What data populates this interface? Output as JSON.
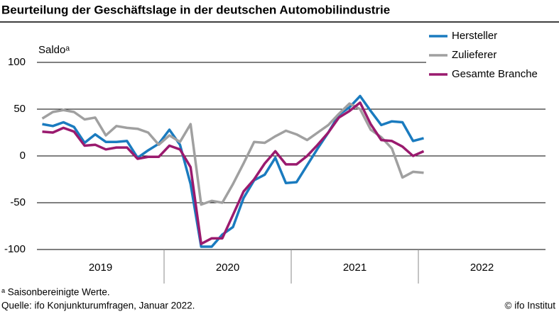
{
  "chart_data": {
    "type": "line",
    "title": "Beurteilung der Geschäftslage in der deutschen Automobilindustrie",
    "y_label": "Saldoᵃ",
    "year_groups": [
      "2019",
      "2020",
      "2021",
      "2022"
    ],
    "ylim": [
      -100,
      100
    ],
    "yticks": [
      -100,
      -50,
      0,
      50,
      100
    ],
    "grid": true,
    "series": [
      {
        "name": "Hersteller",
        "color": "#1a7bbf",
        "values": [
          34,
          32,
          36,
          31,
          14,
          23,
          15,
          15,
          16,
          -2,
          6,
          13,
          28,
          12,
          -30,
          -97,
          -97,
          -84,
          -76,
          -45,
          -26,
          -20,
          -2,
          -29,
          -28,
          -10,
          8,
          25,
          44,
          52,
          64,
          48,
          33,
          37,
          36,
          16,
          19
        ]
      },
      {
        "name": "Zulieferer",
        "color": "#a0a0a0",
        "values": [
          40,
          47,
          49,
          47,
          39,
          41,
          22,
          32,
          30,
          29,
          25,
          12,
          22,
          15,
          34,
          -52,
          -48,
          -50,
          -30,
          -8,
          15,
          14,
          21,
          27,
          23,
          17,
          25,
          33,
          45,
          56,
          50,
          28,
          20,
          8,
          -23,
          -17,
          -18
        ]
      },
      {
        "name": "Gesamte Branche",
        "color": "#9a1a6e",
        "values": [
          26,
          25,
          30,
          26,
          11,
          12,
          7,
          9,
          9,
          -3,
          -1,
          -1,
          11,
          7,
          -12,
          -94,
          -88,
          -88,
          -63,
          -38,
          -25,
          -8,
          5,
          -9,
          -9,
          0,
          12,
          25,
          41,
          48,
          57,
          34,
          17,
          16,
          10,
          0,
          5
        ]
      }
    ],
    "footnote": "ᵃ Saisonbereinigte Werte.",
    "source": "Quelle: ifo Konjunkturumfragen, Januar 2022.",
    "credit": "© ifo Institut"
  }
}
